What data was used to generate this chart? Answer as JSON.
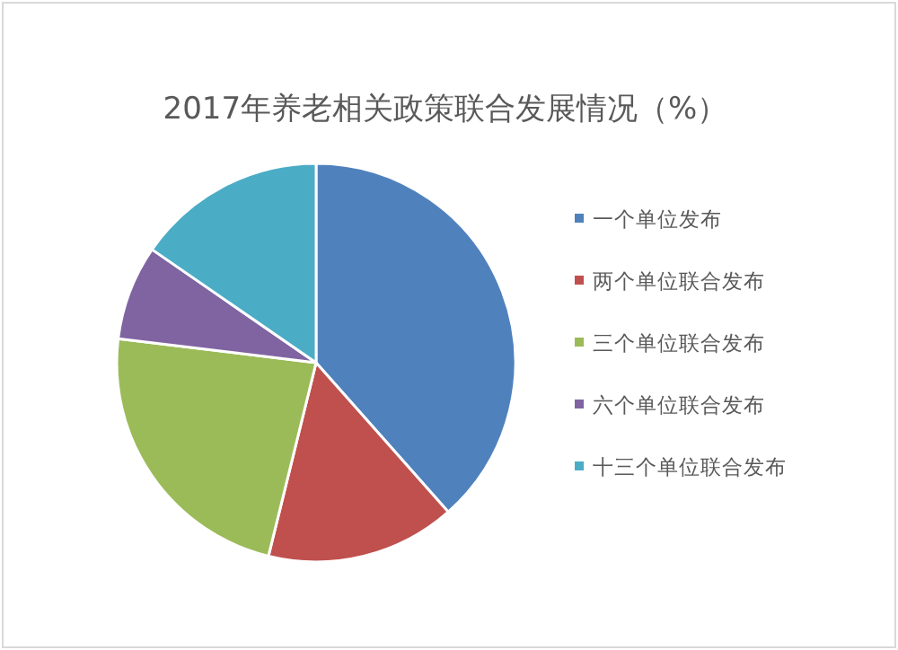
{
  "chart_data": {
    "type": "pie",
    "title": "2017年养老相关政策联合发展情况（%）",
    "categories": [
      "一个单位发布",
      "两个单位联合发布",
      "三个单位联合发布",
      "六个单位联合发布",
      "十三个单位联合发布"
    ],
    "values": [
      38.5,
      15.4,
      23.1,
      7.7,
      15.4
    ],
    "colors": [
      "#4f81bd",
      "#c0504d",
      "#9bbb59",
      "#8064a2",
      "#4bacc6"
    ],
    "legend": "right"
  }
}
